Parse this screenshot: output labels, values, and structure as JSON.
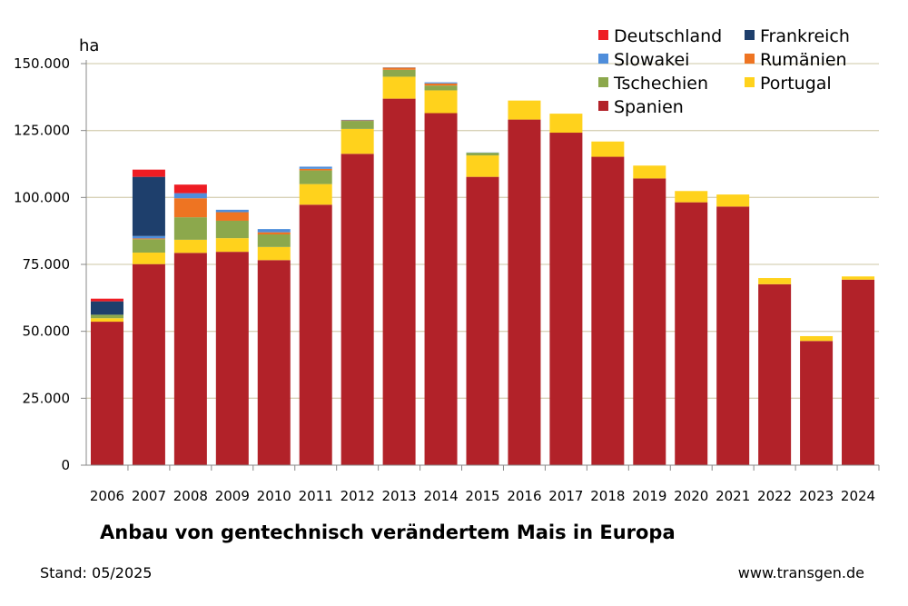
{
  "chart_data": {
    "type": "bar",
    "stacked": true,
    "title": "Anbau von gentechnisch verändertem Mais in Europa",
    "ylabel": "ha",
    "xlabel": "",
    "ylim": [
      0,
      150000
    ],
    "yticks": [
      0,
      25000,
      50000,
      75000,
      100000,
      125000,
      150000
    ],
    "ytick_labels": [
      "0",
      "25.000",
      "50.000",
      "75.000",
      "100.000",
      "125.000",
      "150.000"
    ],
    "grid": true,
    "legend_position": "top-right",
    "categories": [
      "2006",
      "2007",
      "2008",
      "2009",
      "2010",
      "2011",
      "2012",
      "2013",
      "2014",
      "2015",
      "2016",
      "2017",
      "2018",
      "2019",
      "2020",
      "2021",
      "2022",
      "2023",
      "2024"
    ],
    "series": [
      {
        "name": "Spanien",
        "color": "#B22229",
        "values": [
          53600,
          75100,
          79300,
          79700,
          76600,
          97300,
          116300,
          136900,
          131500,
          107700,
          129100,
          124200,
          115200,
          107100,
          98200,
          96600,
          67600,
          46400,
          69300
        ]
      },
      {
        "name": "Portugal",
        "color": "#FFD21C",
        "values": [
          1300,
          4300,
          4900,
          5100,
          4900,
          7700,
          9300,
          8200,
          8500,
          8000,
          7100,
          7100,
          5700,
          4800,
          4200,
          4500,
          2300,
          1800,
          1200
        ]
      },
      {
        "name": "Tschechien",
        "color": "#8CA84C",
        "values": [
          1300,
          5000,
          8400,
          6500,
          4700,
          5100,
          3000,
          2600,
          1800,
          1000,
          0,
          0,
          0,
          0,
          0,
          0,
          0,
          0,
          0
        ]
      },
      {
        "name": "Rumänien",
        "color": "#EE7422",
        "values": [
          0,
          300,
          7100,
          3200,
          800,
          600,
          200,
          800,
          800,
          0,
          0,
          0,
          0,
          0,
          0,
          0,
          0,
          0,
          0
        ]
      },
      {
        "name": "Slowakei",
        "color": "#4F8EDB",
        "values": [
          0,
          900,
          1900,
          900,
          1200,
          800,
          200,
          100,
          400,
          100,
          0,
          0,
          0,
          0,
          0,
          0,
          0,
          0,
          0
        ]
      },
      {
        "name": "Frankreich",
        "color": "#1E3F6C",
        "values": [
          5000,
          22100,
          0,
          0,
          0,
          0,
          0,
          0,
          0,
          0,
          0,
          0,
          0,
          0,
          0,
          0,
          0,
          0,
          0
        ]
      },
      {
        "name": "Deutschland",
        "color": "#EE1C23",
        "values": [
          1000,
          2700,
          3200,
          0,
          0,
          0,
          0,
          0,
          0,
          0,
          0,
          0,
          0,
          0,
          0,
          0,
          0,
          0,
          0
        ]
      }
    ],
    "legend": [
      {
        "name": "Deutschland",
        "color": "#EE1C23"
      },
      {
        "name": "Frankreich",
        "color": "#1E3F6C"
      },
      {
        "name": "Slowakei",
        "color": "#4F8EDB"
      },
      {
        "name": "Rumänien",
        "color": "#EE7422"
      },
      {
        "name": "Tschechien",
        "color": "#8CA84C"
      },
      {
        "name": "Portugal",
        "color": "#FFD21C"
      },
      {
        "name": "Spanien",
        "color": "#B22229"
      }
    ]
  },
  "footer": {
    "stand": "Stand: 05/2025",
    "source": "www.transgen.de"
  }
}
